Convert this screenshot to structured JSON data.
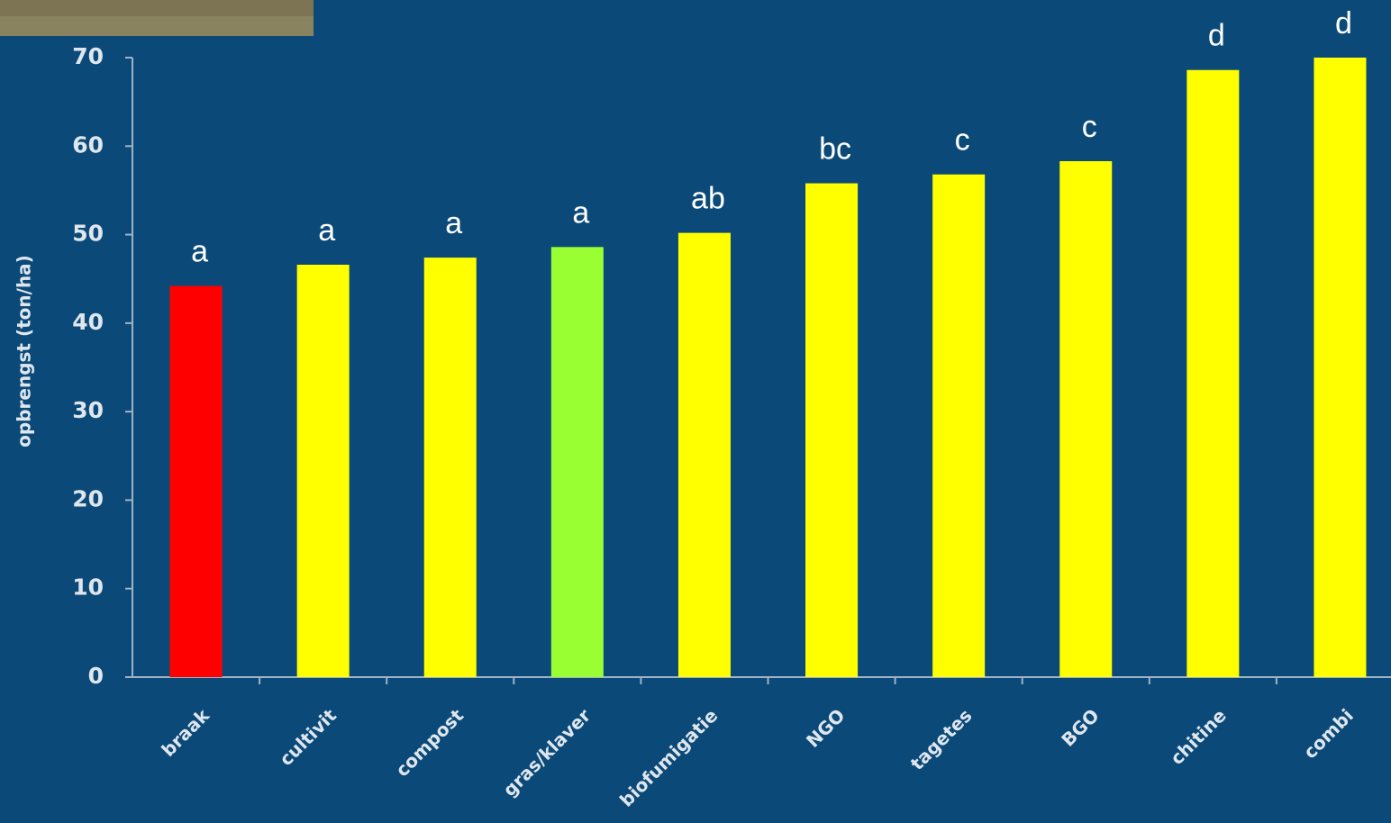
{
  "chart_data": {
    "type": "bar",
    "y_label": "opbrengst (ton/ha)",
    "categories": [
      "braak",
      "cultivit",
      "compost",
      "gras/klaver",
      "biofumigatie",
      "NGO",
      "tagetes",
      "BGO",
      "chitine",
      "combi"
    ],
    "values": [
      44.2,
      46.6,
      47.4,
      48.6,
      50.2,
      55.8,
      56.8,
      58.3,
      68.6,
      70
    ],
    "annotations": [
      "a",
      "a",
      "a",
      "a",
      "ab",
      "bc",
      "c",
      "c",
      "d",
      "d"
    ],
    "colors": [
      "#ff0000",
      "#ffff00",
      "#ffff00",
      "#99ff33",
      "#ffff00",
      "#ffff00",
      "#ffff00",
      "#ffff00",
      "#ffff00",
      "#ffff00"
    ],
    "ylim": [
      0,
      70
    ],
    "yticks": [
      0,
      10,
      20,
      30,
      40,
      50,
      60,
      70
    ],
    "grid": false
  }
}
